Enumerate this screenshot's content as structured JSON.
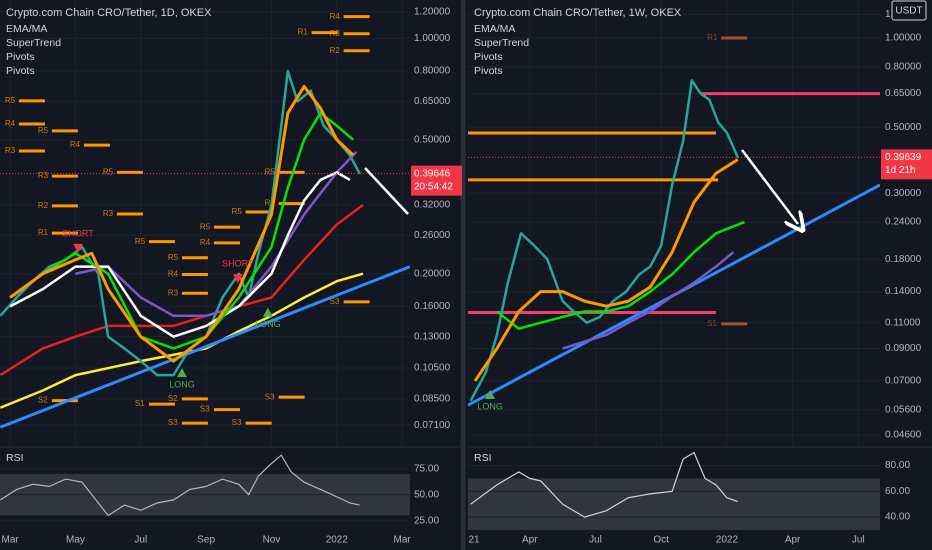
{
  "chart_data": [
    {
      "type": "line",
      "title": "Crypto.com Chain CRO/Tether, 1D, OKEX",
      "legend": [
        "EMA/MA",
        "SuperTrend",
        "Pivots",
        "Pivots"
      ],
      "log_scale": true,
      "grid": true,
      "xlim": [
        1.69,
        14.24
      ],
      "ylim": [
        0.062,
        1.3
      ],
      "xticks": [
        {
          "value": 2,
          "label": "Mar"
        },
        {
          "value": 4,
          "label": "May"
        },
        {
          "value": 6,
          "label": "Jul"
        },
        {
          "value": 8,
          "label": "Sep"
        },
        {
          "value": 10,
          "label": "Nov"
        },
        {
          "value": 12,
          "label": "2022"
        },
        {
          "value": 14,
          "label": "Mar"
        }
      ],
      "yticks": [
        {
          "value": 1.2,
          "label": "1.20000"
        },
        {
          "value": 1.0,
          "label": "1.00000"
        },
        {
          "value": 0.8,
          "label": "0.80000"
        },
        {
          "value": 0.65,
          "label": "0.65000"
        },
        {
          "value": 0.5,
          "label": "0.50000"
        },
        {
          "value": 0.32,
          "label": "0.32000"
        },
        {
          "value": 0.26,
          "label": "0.26000"
        },
        {
          "value": 0.2,
          "label": "0.20000"
        },
        {
          "value": 0.16,
          "label": "0.16000"
        },
        {
          "value": 0.13,
          "label": "0.13000"
        },
        {
          "value": 0.105,
          "label": "0.10500"
        },
        {
          "value": 0.085,
          "label": "0.08500"
        },
        {
          "value": 0.071,
          "label": "0.07100"
        }
      ],
      "series": [
        {
          "color": "#ffeb3b",
          "x": [
            1.7,
            3,
            4,
            6,
            8,
            9,
            10,
            11,
            12,
            12.8
          ],
          "values": [
            0.08,
            0.09,
            0.1,
            0.11,
            0.12,
            0.135,
            0.15,
            0.17,
            0.19,
            0.2
          ]
        },
        {
          "color": "#e52222",
          "x": [
            1.7,
            3,
            4,
            5,
            6,
            7,
            8,
            9,
            10,
            11,
            12,
            12.8
          ],
          "values": [
            0.1,
            0.12,
            0.13,
            0.14,
            0.14,
            0.14,
            0.15,
            0.16,
            0.17,
            0.22,
            0.28,
            0.32
          ]
        },
        {
          "color": "#2e8bff",
          "x": [
            1.7,
            14.24
          ],
          "values": [
            0.07,
            0.21
          ]
        },
        {
          "color": "#26a69a",
          "x": [
            1.7,
            2.2,
            2.7,
            3.2,
            3.7,
            4.2,
            4.7,
            5.0,
            5.5,
            6.0,
            6.5,
            7.0,
            7.5,
            8.0,
            8.5,
            9.0,
            9.3,
            9.6,
            10.0,
            10.3,
            10.5,
            10.8,
            11.2,
            11.6,
            12.0,
            12.4,
            12.7
          ],
          "values": [
            0.15,
            0.17,
            0.19,
            0.21,
            0.22,
            0.24,
            0.2,
            0.13,
            0.12,
            0.11,
            0.1,
            0.1,
            0.12,
            0.13,
            0.17,
            0.2,
            0.17,
            0.23,
            0.32,
            0.55,
            0.8,
            0.65,
            0.7,
            0.55,
            0.5,
            0.45,
            0.396
          ]
        },
        {
          "color": "#7e57c2",
          "x": [
            4,
            5,
            6,
            7,
            8,
            9,
            10,
            11,
            12,
            12.6
          ],
          "values": [
            0.2,
            0.21,
            0.17,
            0.15,
            0.15,
            0.16,
            0.21,
            0.3,
            0.4,
            0.46
          ]
        },
        {
          "color": "#ffffff",
          "x": [
            2,
            3,
            4,
            5,
            6,
            7,
            8,
            9,
            10,
            10.5,
            11,
            11.5,
            12,
            12.4
          ],
          "values": [
            0.16,
            0.18,
            0.21,
            0.21,
            0.15,
            0.13,
            0.14,
            0.16,
            0.2,
            0.26,
            0.33,
            0.38,
            0.4,
            0.38
          ]
        },
        {
          "color": "#00e600",
          "x": [
            2,
            3,
            4,
            5,
            6,
            7,
            8,
            9,
            10,
            10.5,
            11,
            11.5,
            12,
            12.5
          ],
          "values": [
            0.17,
            0.2,
            0.23,
            0.2,
            0.13,
            0.12,
            0.13,
            0.17,
            0.24,
            0.36,
            0.5,
            0.6,
            0.55,
            0.5
          ]
        },
        {
          "color": "#ff9800",
          "x": [
            2,
            3,
            4,
            4.5,
            5,
            6,
            7,
            8,
            9,
            10,
            10.5,
            11,
            11.5,
            12,
            12.5
          ],
          "values": [
            0.17,
            0.2,
            0.22,
            0.23,
            0.18,
            0.13,
            0.11,
            0.13,
            0.18,
            0.3,
            0.6,
            0.72,
            0.62,
            0.5,
            0.45
          ]
        }
      ],
      "pivot_color": "#ff9800",
      "pivots": [
        {
          "label": "R5",
          "x": 1.84,
          "value": 0.652
        },
        {
          "label": "R4",
          "x": 1.84,
          "value": 0.557
        },
        {
          "label": "R3",
          "x": 1.84,
          "value": 0.463
        },
        {
          "label": "R5",
          "x": 2.85,
          "value": 0.531
        },
        {
          "label": "R4",
          "x": 3.83,
          "value": 0.482
        },
        {
          "label": "R3",
          "x": 2.85,
          "value": 0.39
        },
        {
          "label": "R5",
          "x": 4.84,
          "value": 0.4
        },
        {
          "label": "R3",
          "x": 4.84,
          "value": 0.301
        },
        {
          "label": "R2",
          "x": 2.85,
          "value": 0.318
        },
        {
          "label": "R1",
          "x": 2.85,
          "value": 0.264
        },
        {
          "label": "R5",
          "x": 8.78,
          "value": 0.305
        },
        {
          "label": "R5",
          "x": 7.81,
          "value": 0.275
        },
        {
          "label": "R4",
          "x": 7.81,
          "value": 0.247
        },
        {
          "label": "R5",
          "x": 5.82,
          "value": 0.249
        },
        {
          "label": "R5",
          "x": 6.83,
          "value": 0.223
        },
        {
          "label": "R4",
          "x": 6.83,
          "value": 0.199
        },
        {
          "label": "R3",
          "x": 6.83,
          "value": 0.175
        },
        {
          "label": "R3",
          "x": 9.79,
          "value": 0.323
        },
        {
          "label": "R5",
          "x": 9.79,
          "value": 0.4
        },
        {
          "label": "S2",
          "x": 2.85,
          "value": 0.084
        },
        {
          "label": "S1",
          "x": 5.82,
          "value": 0.082
        },
        {
          "label": "S2",
          "x": 6.83,
          "value": 0.085
        },
        {
          "label": "S3",
          "x": 7.81,
          "value": 0.079
        },
        {
          "label": "S3",
          "x": 6.83,
          "value": 0.072
        },
        {
          "label": "S3",
          "x": 8.78,
          "value": 0.072
        },
        {
          "label": "S3",
          "x": 9.79,
          "value": 0.086
        },
        {
          "label": "S3",
          "x": 11.78,
          "value": 0.165
        },
        {
          "label": "R3",
          "x": 11.78,
          "value": 1.032
        },
        {
          "label": "R1",
          "x": 10.8,
          "value": 1.04
        },
        {
          "label": "R4",
          "x": 11.78,
          "value": 1.16
        },
        {
          "label": "R2",
          "x": 11.78,
          "value": 0.919
        }
      ],
      "annotations": [
        {
          "text": "SHORT",
          "x": 4.08,
          "value": 0.252,
          "color": "#f23645"
        },
        {
          "text": "SHORT",
          "x": 8.97,
          "value": 0.205,
          "color": "#f23645"
        },
        {
          "text": "LONG",
          "x": 7.26,
          "value": 0.096,
          "color": "#4caf50"
        },
        {
          "text": "LONG",
          "x": 9.89,
          "value": 0.145,
          "color": "#4caf50"
        }
      ],
      "last_price": {
        "value": 0.39646,
        "label": "0.39646",
        "countdown": "20:54:42",
        "color": "#f23645"
      },
      "rsi": {
        "title": "RSI",
        "color": "#b2b5be",
        "ylim": [
          16,
          93
        ],
        "band": [
          30,
          70
        ],
        "yticks": [
          {
            "value": 75,
            "label": "75.00"
          },
          {
            "value": 50,
            "label": "50.00"
          },
          {
            "value": 25,
            "label": "25.00"
          }
        ],
        "x": [
          1.7,
          2.2,
          2.7,
          3.2,
          3.7,
          4.2,
          4.5,
          5.0,
          5.5,
          6.0,
          6.5,
          7.0,
          7.5,
          8.0,
          8.5,
          9.0,
          9.3,
          9.6,
          10.0,
          10.3,
          10.6,
          11.0,
          11.5,
          12.0,
          12.4,
          12.7
        ],
        "values": [
          45,
          55,
          60,
          58,
          65,
          62,
          50,
          30,
          40,
          35,
          42,
          45,
          55,
          58,
          65,
          60,
          50,
          68,
          80,
          88,
          72,
          62,
          55,
          48,
          42,
          40
        ]
      }
    },
    {
      "type": "line",
      "title": "Crypto.com Chain CRO/Tether, 1W, OKEX",
      "legend": [
        "EMA/MA",
        "SuperTrend",
        "Pivots",
        "Pivots"
      ],
      "currency": "USDT",
      "log_scale": true,
      "grid": true,
      "xlim": [
        0.18,
        18.99
      ],
      "ylim": [
        0.0426,
        1.343
      ],
      "xticks": [
        {
          "value": 0,
          "label": "21"
        },
        {
          "value": 3,
          "label": "Apr"
        },
        {
          "value": 6,
          "label": "Jul"
        },
        {
          "value": 9,
          "label": "Oct"
        },
        {
          "value": 12,
          "label": "2022"
        },
        {
          "value": 15,
          "label": "Apr"
        },
        {
          "value": 18,
          "label": "Jul"
        }
      ],
      "yticks": [
        {
          "value": 1.2,
          "label": "1.20000"
        },
        {
          "value": 1.0,
          "label": "1.00000"
        },
        {
          "value": 0.8,
          "label": "0.80000"
        },
        {
          "value": 0.65,
          "label": "0.65000"
        },
        {
          "value": 0.5,
          "label": "0.50000"
        },
        {
          "value": 0.3,
          "label": "0.30000"
        },
        {
          "value": 0.24,
          "label": "0.24000"
        },
        {
          "value": 0.18,
          "label": "0.18000"
        },
        {
          "value": 0.14,
          "label": "0.14000"
        },
        {
          "value": 0.11,
          "label": "0.11000"
        },
        {
          "value": 0.09,
          "label": "0.09000"
        },
        {
          "value": 0.07,
          "label": "0.07000"
        },
        {
          "value": 0.056,
          "label": "0.05600"
        },
        {
          "value": 0.046,
          "label": "0.04600"
        }
      ],
      "series": [
        {
          "color": "#2e8bff",
          "x": [
            0.18,
            18.99
          ],
          "values": [
            0.058,
            0.32
          ]
        },
        {
          "color": "#26a69a",
          "x": [
            0.3,
            1.0,
            1.5,
            2.0,
            2.6,
            3.2,
            3.8,
            4.5,
            5.0,
            5.6,
            6.2,
            6.8,
            7.4,
            8.0,
            8.5,
            9.0,
            9.5,
            10.0,
            10.4,
            10.8,
            11.2,
            11.6,
            12.0,
            12.5
          ],
          "values": [
            0.06,
            0.075,
            0.1,
            0.15,
            0.22,
            0.2,
            0.18,
            0.13,
            0.12,
            0.11,
            0.115,
            0.13,
            0.14,
            0.16,
            0.17,
            0.2,
            0.32,
            0.45,
            0.72,
            0.65,
            0.62,
            0.52,
            0.48,
            0.396
          ]
        },
        {
          "color": "#7e57c2",
          "x": [
            4.5,
            5.5,
            6.5,
            7.5,
            8.5,
            9.5,
            10.5,
            11.5,
            12.3
          ],
          "values": [
            0.09,
            0.095,
            0.1,
            0.11,
            0.12,
            0.135,
            0.15,
            0.17,
            0.19
          ]
        },
        {
          "color": "#00e600",
          "x": [
            1.5,
            2.5,
            3.5,
            4.5,
            5.5,
            6.5,
            7.5,
            8.5,
            9.5,
            10.5,
            11.5,
            12.8
          ],
          "values": [
            0.12,
            0.105,
            0.11,
            0.115,
            0.12,
            0.12,
            0.125,
            0.14,
            0.16,
            0.19,
            0.22,
            0.24
          ]
        },
        {
          "color": "#ff9800",
          "x": [
            0.5,
            1.5,
            2.5,
            3.5,
            4.5,
            5.5,
            6.5,
            7.5,
            8.5,
            9.5,
            10.5,
            11.5,
            12.5
          ],
          "values": [
            0.07,
            0.09,
            0.12,
            0.14,
            0.14,
            0.13,
            0.125,
            0.13,
            0.145,
            0.19,
            0.28,
            0.35,
            0.39
          ]
        }
      ],
      "pivot_color": "#a0522d",
      "pivots": [
        {
          "label": "R1",
          "x": 11.1,
          "value": 1.0
        },
        {
          "label": "S1",
          "x": 11.1,
          "value": 0.109
        }
      ],
      "levels": [
        {
          "x": [
            10.8,
            18.99
          ],
          "value": 0.65,
          "color": "#f23d6d"
        },
        {
          "x": [
            0.18,
            11.5
          ],
          "value": 0.479,
          "color": "#ff9800"
        },
        {
          "x": [
            0.18,
            11.6
          ],
          "value": 0.333,
          "color": "#ff9800"
        },
        {
          "x": [
            0.18,
            11.5
          ],
          "value": 0.119,
          "color": "#f23d6d"
        }
      ],
      "annotations": [
        {
          "text": "LONG",
          "x": 1.19,
          "value": 0.059,
          "color": "#4caf50"
        }
      ],
      "last_price": {
        "value": 0.39639,
        "label": "0.39639",
        "countdown": "1d 21h",
        "color": "#f23645"
      },
      "rsi": {
        "title": "RSI",
        "color": "#d1d4dc",
        "ylim": [
          30,
          92
        ],
        "band": [
          30,
          70
        ],
        "yticks": [
          {
            "value": 80,
            "label": "80.00"
          },
          {
            "value": 60,
            "label": "60.00"
          },
          {
            "value": 40,
            "label": "40.00"
          }
        ],
        "x": [
          0.3,
          1.5,
          2.5,
          3.0,
          3.5,
          4.5,
          5.5,
          6.5,
          7.5,
          8.5,
          9.5,
          10.0,
          10.5,
          11.0,
          11.5,
          12.0,
          12.5
        ],
        "values": [
          50,
          65,
          75,
          70,
          68,
          50,
          40,
          45,
          55,
          58,
          60,
          85,
          90,
          70,
          65,
          55,
          52
        ]
      }
    }
  ]
}
